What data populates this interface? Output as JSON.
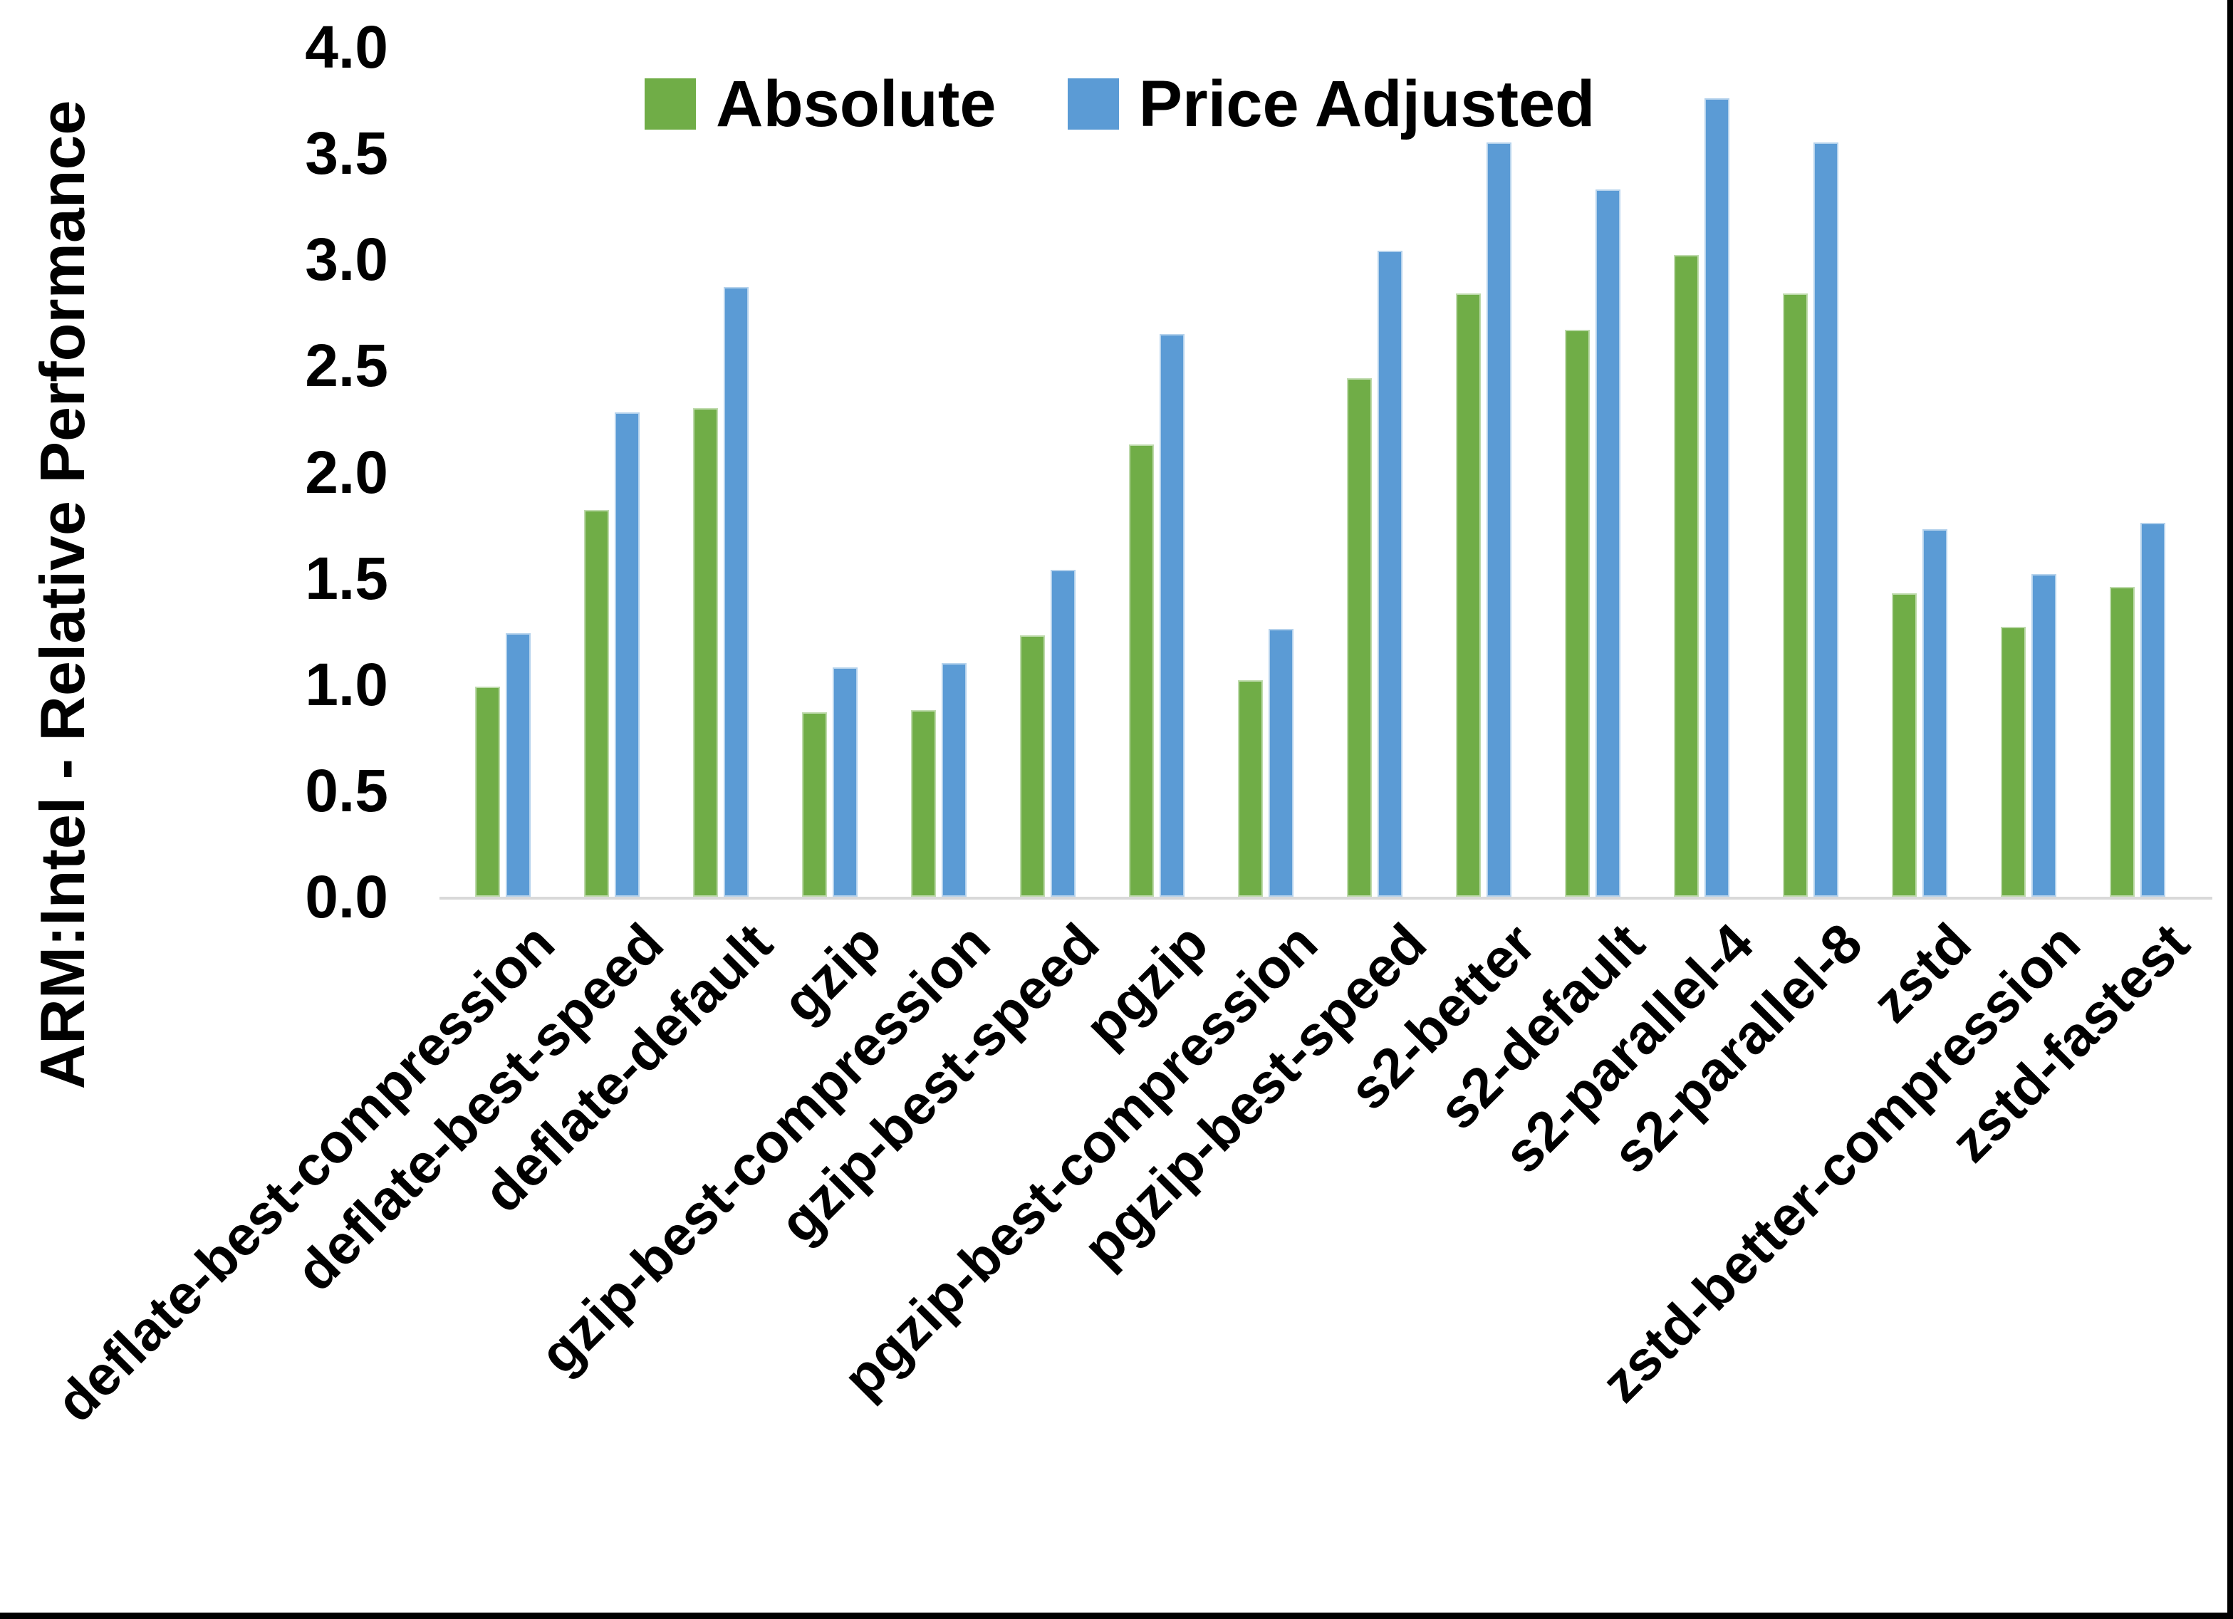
{
  "chart_data": {
    "type": "bar",
    "title": "",
    "ylabel": "ARM:Intel - Relative Performance",
    "xlabel": "",
    "ylim": [
      0,
      4.0
    ],
    "ytick_step": 0.5,
    "yticks": [
      "0.0",
      "0.5",
      "1.0",
      "1.5",
      "2.0",
      "2.5",
      "3.0",
      "3.5",
      "4.0"
    ],
    "grid": false,
    "legend_position": "top-center",
    "categories": [
      "deflate-best-compression",
      "deflate-best-speed",
      "deflate-default",
      "gzip",
      "gzip-best-compression",
      "gzip-best-speed",
      "pgzip",
      "pgzip-best-compression",
      "pgzip-best-speed",
      "s2-better",
      "s2-default",
      "s2-parallel-4",
      "s2-parallel-8",
      "zstd",
      "zstd-better-compression",
      "zstd-fastest"
    ],
    "series": [
      {
        "name": "Absolute",
        "color": "#70AD47",
        "values": [
          0.99,
          1.82,
          2.3,
          0.87,
          0.88,
          1.23,
          2.13,
          1.02,
          2.44,
          2.84,
          2.67,
          3.02,
          2.84,
          1.43,
          1.27,
          1.46
        ]
      },
      {
        "name": "Price Adjusted",
        "color": "#5B9BD5",
        "values": [
          1.24,
          2.28,
          2.87,
          1.08,
          1.1,
          1.54,
          2.65,
          1.26,
          3.04,
          3.55,
          3.33,
          3.76,
          3.55,
          1.73,
          1.52,
          1.76
        ]
      }
    ],
    "colors": {
      "axis_line": "#D9D9D9",
      "text": "#000000",
      "background": "#FFFFFF",
      "frame_border": "#000000"
    }
  }
}
